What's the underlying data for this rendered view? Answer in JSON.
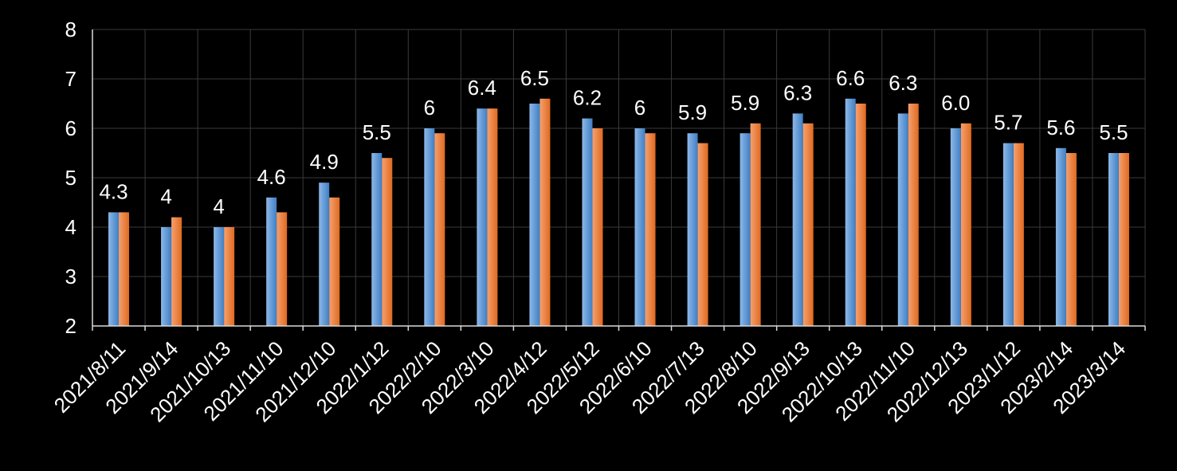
{
  "chart_data": {
    "type": "bar",
    "categories": [
      "2021/8/11",
      "2021/9/14",
      "2021/10/13",
      "2021/11/10",
      "2021/12/10",
      "2022/1/12",
      "2022/2/10",
      "2022/3/10",
      "2022/4/12",
      "2022/5/12",
      "2022/6/10",
      "2022/7/13",
      "2022/8/10",
      "2022/9/13",
      "2022/10/13",
      "2022/11/10",
      "2022/12/13",
      "2023/1/12",
      "2023/2/14",
      "2023/3/14"
    ],
    "series": [
      {
        "values": [
          4.3,
          4.0,
          4.0,
          4.6,
          4.9,
          5.5,
          6.0,
          6.4,
          6.5,
          6.2,
          6.0,
          5.9,
          5.9,
          6.3,
          6.6,
          6.3,
          6.0,
          5.7,
          5.6,
          5.5
        ],
        "color": "#5b9bd5"
      },
      {
        "values": [
          4.3,
          4.2,
          4.0,
          4.3,
          4.6,
          5.4,
          5.9,
          6.4,
          6.6,
          6.0,
          5.9,
          5.7,
          6.1,
          6.1,
          6.5,
          6.5,
          6.1,
          5.7,
          5.5,
          5.5
        ],
        "color": "#ed7d31"
      }
    ],
    "data_labels": [
      "4.3",
      "4",
      "4",
      "4.6",
      "4.9",
      "5.5",
      "6",
      "6.4",
      "6.5",
      "6.2",
      "6",
      "5.9",
      "5.9",
      "6.3",
      "6.6",
      "6.3",
      "6.0",
      "5.7",
      "5.6",
      "5.5"
    ],
    "y_ticks": [
      "2",
      "3",
      "4",
      "5",
      "6",
      "7",
      "8"
    ],
    "ylim": [
      2,
      8
    ],
    "grid": true,
    "legend": "none",
    "background": "#000000"
  }
}
